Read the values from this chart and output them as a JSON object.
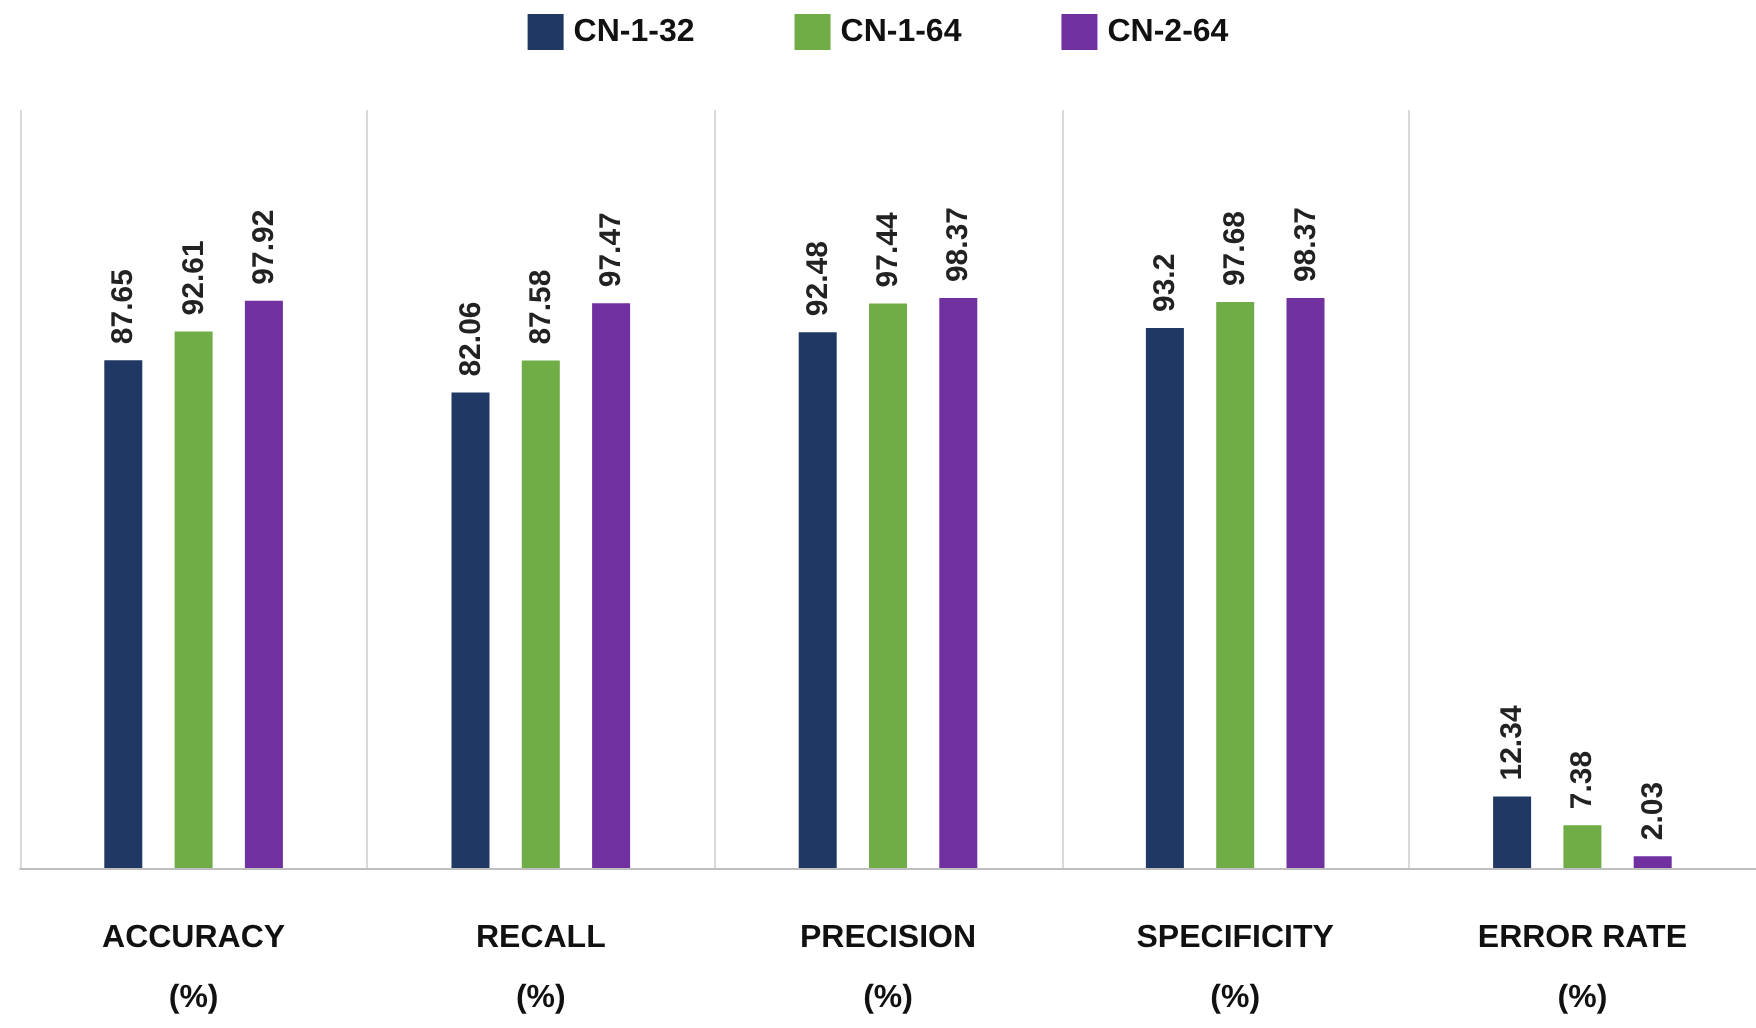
{
  "chart_data": {
    "type": "bar",
    "categories": [
      "ACCURACY\n(%)",
      "RECALL\n(%)",
      "PRECISION\n(%)",
      "SPECIFICITY\n(%)",
      "ERROR RATE\n(%)"
    ],
    "series": [
      {
        "name": "CN-1-32",
        "color": "#1f3864",
        "values": [
          87.65,
          82.06,
          92.48,
          93.2,
          12.34
        ]
      },
      {
        "name": "CN-1-64",
        "color": "#70ad47",
        "values": [
          92.61,
          87.58,
          97.44,
          97.68,
          7.38
        ]
      },
      {
        "name": "CN-2-64",
        "color": "#7030a0",
        "values": [
          97.92,
          97.47,
          98.37,
          98.37,
          2.03
        ]
      }
    ],
    "data_labels": true,
    "legend": "top",
    "grid": "x"
  }
}
